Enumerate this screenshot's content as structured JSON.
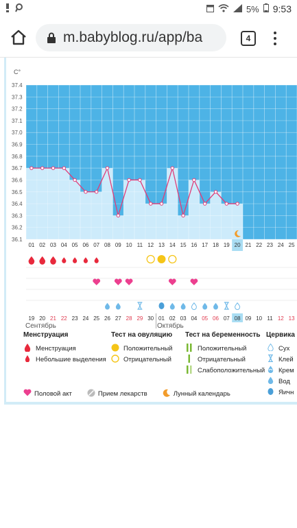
{
  "status_bar": {
    "battery": "5%",
    "time": "9:53"
  },
  "browser": {
    "url": "m.babyblog.ru/app/ba",
    "tab_count": "4"
  },
  "chart_data": {
    "type": "line",
    "ylabel": "C°",
    "ylim": [
      36.1,
      37.4
    ],
    "yticks": [
      "37.4",
      "37.3",
      "37.2",
      "37.1",
      "37.0",
      "36.9",
      "36.8",
      "36.7",
      "36.6",
      "36.5",
      "36.4",
      "36.3",
      "36.2",
      "36.1"
    ],
    "cycle_days": [
      "01",
      "02",
      "03",
      "04",
      "05",
      "06",
      "07",
      "08",
      "09",
      "10",
      "11",
      "12",
      "13",
      "14",
      "15",
      "16",
      "17",
      "18",
      "19",
      "20",
      "21",
      "22",
      "23",
      "24",
      "25"
    ],
    "x": [
      1,
      2,
      3,
      4,
      5,
      6,
      7,
      8,
      9,
      10,
      11,
      12,
      13,
      14,
      15,
      16,
      17,
      18,
      19,
      20
    ],
    "temperature": [
      36.7,
      36.7,
      36.7,
      36.7,
      36.6,
      36.5,
      36.5,
      36.7,
      36.3,
      36.6,
      36.6,
      36.4,
      36.4,
      36.7,
      36.3,
      36.6,
      36.4,
      36.5,
      36.4,
      36.4
    ],
    "current_day": "20",
    "dates": [
      {
        "d": "19",
        "red": false
      },
      {
        "d": "20",
        "red": false
      },
      {
        "d": "21",
        "red": true
      },
      {
        "d": "22",
        "red": true
      },
      {
        "d": "23",
        "red": false
      },
      {
        "d": "24",
        "red": false
      },
      {
        "d": "25",
        "red": false
      },
      {
        "d": "26",
        "red": false
      },
      {
        "d": "27",
        "red": false
      },
      {
        "d": "28",
        "red": true
      },
      {
        "d": "29",
        "red": true
      },
      {
        "d": "30",
        "red": false
      },
      {
        "d": "01",
        "red": false
      },
      {
        "d": "02",
        "red": false
      },
      {
        "d": "03",
        "red": false
      },
      {
        "d": "04",
        "red": false
      },
      {
        "d": "05",
        "red": true
      },
      {
        "d": "06",
        "red": true
      },
      {
        "d": "07",
        "red": false
      },
      {
        "d": "08",
        "red": false
      },
      {
        "d": "09",
        "red": false
      },
      {
        "d": "10",
        "red": false
      },
      {
        "d": "11",
        "red": false
      },
      {
        "d": "12",
        "red": true
      },
      {
        "d": "13",
        "red": true
      }
    ],
    "month_labels": {
      "first": "Сентябрь",
      "second": "Октябрь"
    },
    "menstruation": {
      "heavy_days": [
        1,
        2,
        3
      ],
      "light_days": [
        4,
        5,
        6,
        7
      ]
    },
    "ovulation_tests": {
      "negative_days": [
        12,
        14
      ],
      "positive_days": [
        13
      ]
    },
    "intercourse_days": [
      7,
      9,
      10,
      14,
      16
    ],
    "cervical_mucus": [
      {
        "day": 8,
        "type": "watery"
      },
      {
        "day": 9,
        "type": "creamy"
      },
      {
        "day": 11,
        "type": "sticky"
      },
      {
        "day": 13,
        "type": "eggwhite"
      },
      {
        "day": 14,
        "type": "watery"
      },
      {
        "day": 15,
        "type": "watery"
      },
      {
        "day": 16,
        "type": "dry"
      },
      {
        "day": 17,
        "type": "watery"
      },
      {
        "day": 18,
        "type": "watery"
      },
      {
        "day": 19,
        "type": "sticky"
      },
      {
        "day": 20,
        "type": "dry"
      }
    ],
    "lunar_day": 20,
    "colors": {
      "high_zone": "#4db3e6",
      "below_line": "#cdebfb",
      "line": "#e03c78",
      "menstruation": "#e8293c",
      "intercourse": "#ec3f8f",
      "ovulation_positive": "#f5c518",
      "pregnancy_test": "#7ab833",
      "mucus": "#6fb9e8",
      "lunar": "#f29c2b",
      "current_day": "#a9ddf3"
    }
  },
  "legend": {
    "menstruation": {
      "title": "Менструация",
      "items": [
        "Менструация",
        "Небольшие выделения"
      ]
    },
    "ovulation": {
      "title": "Тест на овуляцию",
      "items": [
        "Положительный",
        "Отрицательный"
      ]
    },
    "pregnancy": {
      "title": "Тест на беременность",
      "items": [
        "Положительный",
        "Отрицательный",
        "Слабоположительный"
      ]
    },
    "cervical": {
      "title": "Цервика",
      "items": [
        "Сух",
        "Клей",
        "Крем",
        "Вод",
        "Яичн"
      ]
    },
    "bottom": {
      "intercourse": "Половой акт",
      "medication": "Прием лекарств",
      "lunar": "Лунный календарь"
    }
  }
}
